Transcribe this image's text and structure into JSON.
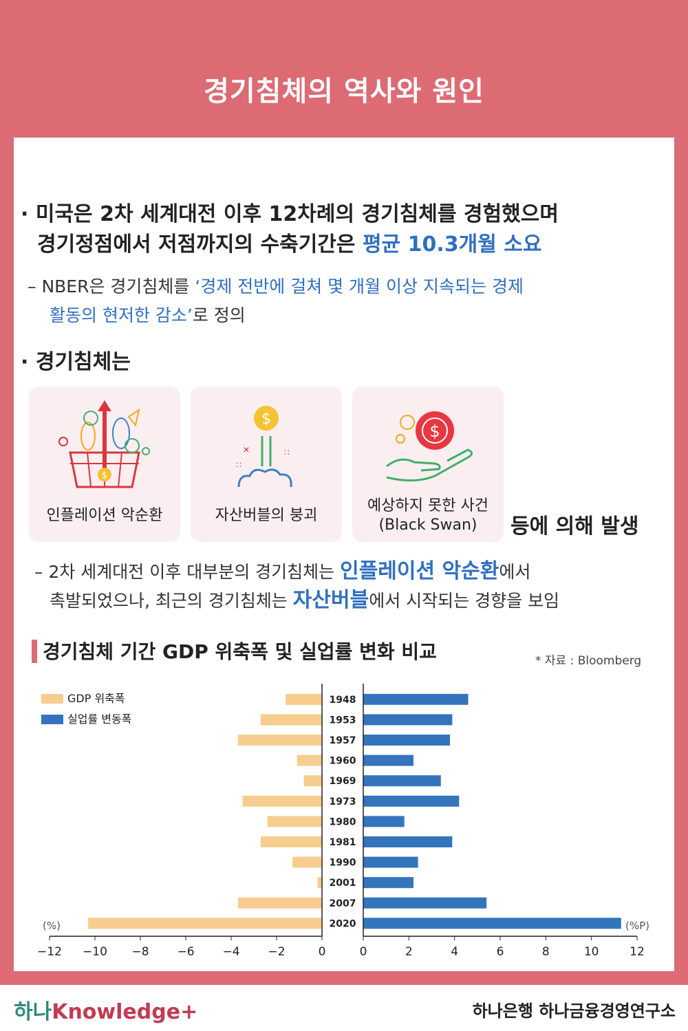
{
  "header": {
    "title": "경기침체의 역사와 원인"
  },
  "intro": {
    "line1": "미국은 2차 세계대전 이후 12차례의 경기침체를 경험했으며",
    "line2_pre": "경기정점에서 저점까지의 수축기간은 ",
    "line2_hl": "평균 10.3개월 소요",
    "nber_pre": "NBER은 경기침체를 ",
    "nber_hl1": "‘경제 전반에 걸쳐 몇 개월 이상 지속되는 경제",
    "nber_hl2": "활동의 현저한 감소’",
    "nber_post": "로 정의"
  },
  "causes": {
    "heading": "경기침체는",
    "items": [
      {
        "label": "인플레이션 악순환",
        "icon": "shopping-basket-rising-arrow-icon"
      },
      {
        "label": "자산버블의 붕괴",
        "icon": "dollar-coin-bubble-icon"
      },
      {
        "label_line1": "예상하지 못한 사건",
        "label_line2": "(Black Swan)",
        "icon": "hand-dollar-coin-icon"
      }
    ],
    "suffix": "등에 의해 발생"
  },
  "trend": {
    "l1_pre": "2차 세계대전 이후 대부분의 경기침체는 ",
    "l1_hl": "인플레이션 악순환",
    "l1_post": "에서",
    "l2_pre": "촉발되었으나, 최근의 경기침체는 ",
    "l2_hl": "자산버블",
    "l2_post": "에서 시작되는 경향을 보임"
  },
  "chart_section": {
    "title": "경기침체 기간 GDP 위축폭 및 실업률 변화 비교",
    "source": "* 자료 : Bloomberg"
  },
  "colors": {
    "accent": "#dc6b74",
    "gdp": "#f7cd8f",
    "unemp": "#3374bd",
    "highlight": "#2f6fbf"
  },
  "chart_data": {
    "type": "bar",
    "orientation": "horizontal",
    "categories": [
      "1948",
      "1953",
      "1957",
      "1960",
      "1969",
      "1973",
      "1980",
      "1981",
      "1990",
      "2001",
      "2007",
      "2020"
    ],
    "series": [
      {
        "name": "GDP 위축폭",
        "values": [
          -1.6,
          -2.7,
          -3.7,
          -1.1,
          -0.8,
          -3.5,
          -2.4,
          -2.7,
          -1.3,
          -0.2,
          -3.7,
          -10.3
        ],
        "unit": "(%)",
        "xlim": [
          -12,
          0
        ],
        "ticks": [
          -12,
          -10,
          -8,
          -6,
          -4,
          -2,
          0
        ]
      },
      {
        "name": "실업률 변동폭",
        "values": [
          4.6,
          3.9,
          3.8,
          2.2,
          3.4,
          4.2,
          1.8,
          3.9,
          2.4,
          2.2,
          5.4,
          11.3
        ],
        "unit": "(%P)",
        "xlim": [
          0,
          12
        ],
        "ticks": [
          0,
          2,
          4,
          6,
          8,
          10,
          12
        ]
      }
    ],
    "legend_position": "top-left"
  },
  "footer": {
    "brand_left_a": "하나",
    "brand_left_b": "Knowledge",
    "brand_right": "하나은행  하나금융경영연구소"
  }
}
